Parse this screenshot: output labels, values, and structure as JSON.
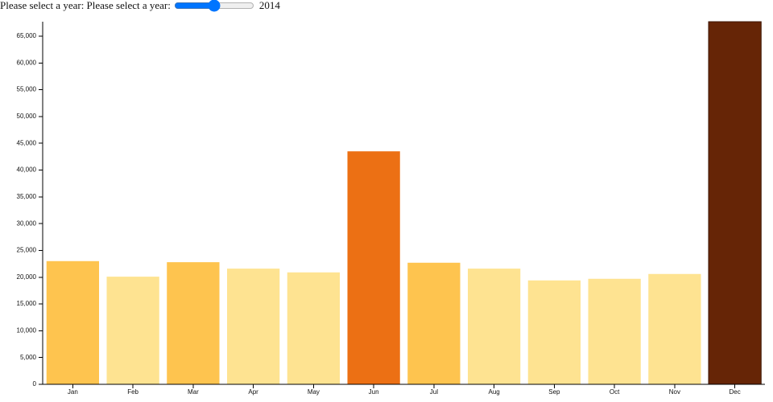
{
  "controls": {
    "label": "Please select a year: Please select a year:",
    "year": "2014"
  },
  "chart_data": {
    "type": "bar",
    "categories": [
      "Jan",
      "Feb",
      "Mar",
      "Apr",
      "May",
      "Jun",
      "Jul",
      "Aug",
      "Sep",
      "Oct",
      "Nov",
      "Dec"
    ],
    "values": [
      23000,
      20100,
      22800,
      21600,
      20900,
      43500,
      22700,
      21600,
      19400,
      19700,
      20600,
      67700
    ],
    "colors": [
      "#fec44f",
      "#fee391",
      "#fec44f",
      "#fee391",
      "#fee391",
      "#ec7014",
      "#fec44f",
      "#fee391",
      "#fee391",
      "#fee391",
      "#fee391",
      "#662506"
    ],
    "ylim": [
      0,
      67700
    ],
    "yticks": [
      0,
      {
        "value": 5000,
        "label": "5,000"
      },
      {
        "value": 10000,
        "label": "10,000"
      },
      {
        "value": 15000,
        "label": "15,000"
      },
      {
        "value": 20000,
        "label": "20,000"
      },
      {
        "value": 25000,
        "label": "25,000"
      },
      {
        "value": 30000,
        "label": "30,000"
      },
      {
        "value": 35000,
        "label": "35,000"
      },
      {
        "value": 40000,
        "label": "40,000"
      },
      {
        "value": 45000,
        "label": "45,000"
      },
      {
        "value": 50000,
        "label": "50,000"
      },
      {
        "value": 55000,
        "label": "55,000"
      },
      {
        "value": 60000,
        "label": "60,000"
      },
      {
        "value": 65000,
        "label": "65,000"
      }
    ]
  }
}
